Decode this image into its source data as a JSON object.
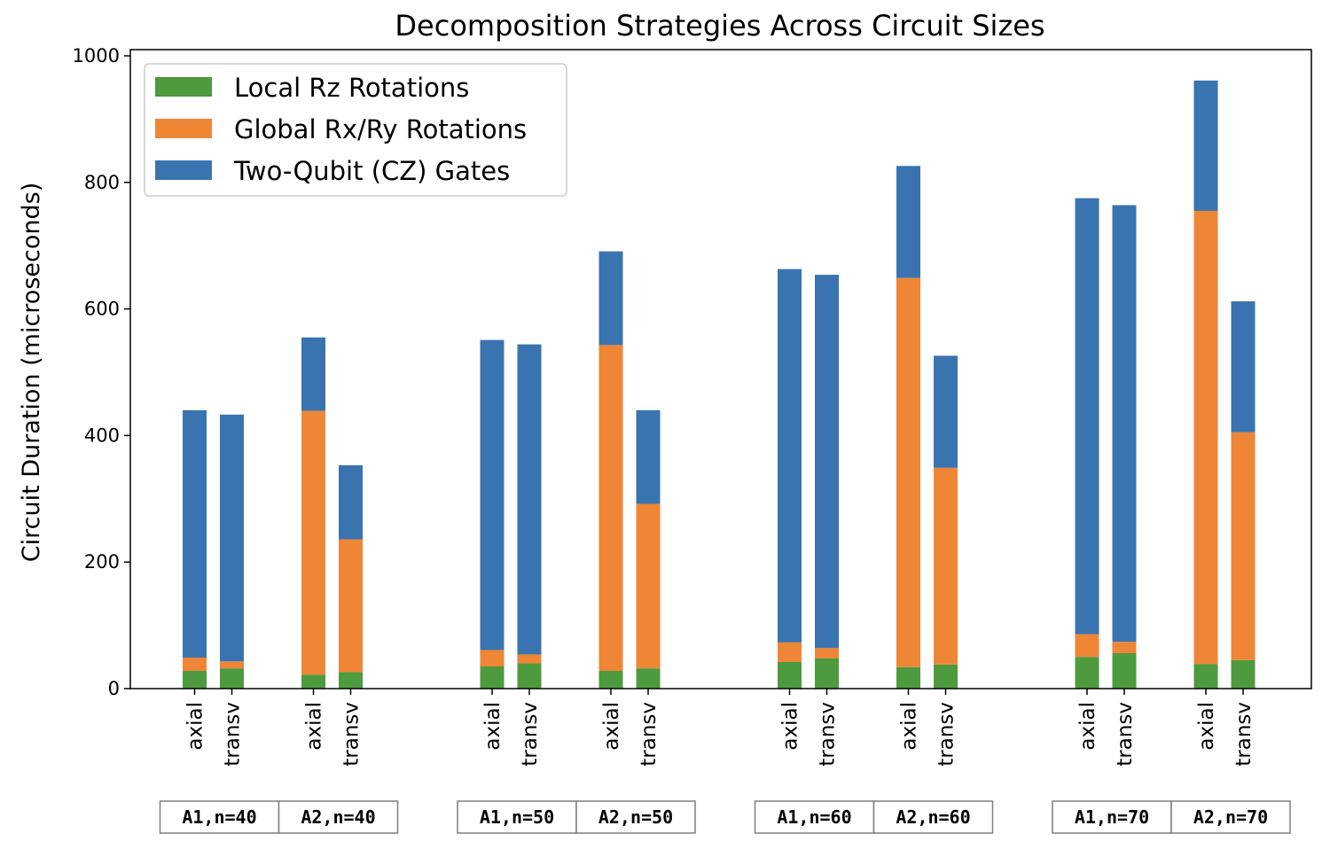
{
  "chart_data": {
    "type": "bar",
    "stacked": true,
    "title": "Decomposition Strategies Across Circuit Sizes",
    "xlabel": "",
    "ylabel": "Circuit Duration (microseconds)",
    "ylim": [
      0,
      1000
    ],
    "yticks": [
      0,
      200,
      400,
      600,
      800,
      1000
    ],
    "legend_position": "top-left",
    "groups": [
      {
        "label": "A1,n=40",
        "categories": [
          "axial",
          "transv"
        ]
      },
      {
        "label": "A2,n=40",
        "categories": [
          "axial",
          "transv"
        ]
      },
      {
        "label": "A1,n=50",
        "categories": [
          "axial",
          "transv"
        ]
      },
      {
        "label": "A2,n=50",
        "categories": [
          "axial",
          "transv"
        ]
      },
      {
        "label": "A1,n=60",
        "categories": [
          "axial",
          "transv"
        ]
      },
      {
        "label": "A2,n=60",
        "categories": [
          "axial",
          "transv"
        ]
      },
      {
        "label": "A1,n=70",
        "categories": [
          "axial",
          "transv"
        ]
      },
      {
        "label": "A2,n=70",
        "categories": [
          "axial",
          "transv"
        ]
      }
    ],
    "categories": [
      "axial",
      "transv",
      "axial",
      "transv",
      "axial",
      "transv",
      "axial",
      "transv",
      "axial",
      "transv",
      "axial",
      "transv",
      "axial",
      "transv",
      "axial",
      "transv"
    ],
    "series": [
      {
        "name": "Local Rz Rotations",
        "color": "#4e9a3e",
        "values": [
          28,
          32,
          22,
          26,
          35,
          40,
          28,
          32,
          42,
          48,
          34,
          38,
          50,
          56,
          39,
          45
        ]
      },
      {
        "name": "Global Rx/Ry Rotations",
        "color": "#ef8636",
        "values": [
          21,
          11,
          417,
          210,
          26,
          14,
          515,
          260,
          31,
          16,
          615,
          311,
          36,
          18,
          716,
          360
        ]
      },
      {
        "name": "Two-Qubit (CZ) Gates",
        "color": "#3a74b0",
        "values": [
          391,
          390,
          116,
          117,
          490,
          490,
          148,
          148,
          590,
          590,
          177,
          177,
          689,
          690,
          206,
          207
        ]
      }
    ]
  }
}
